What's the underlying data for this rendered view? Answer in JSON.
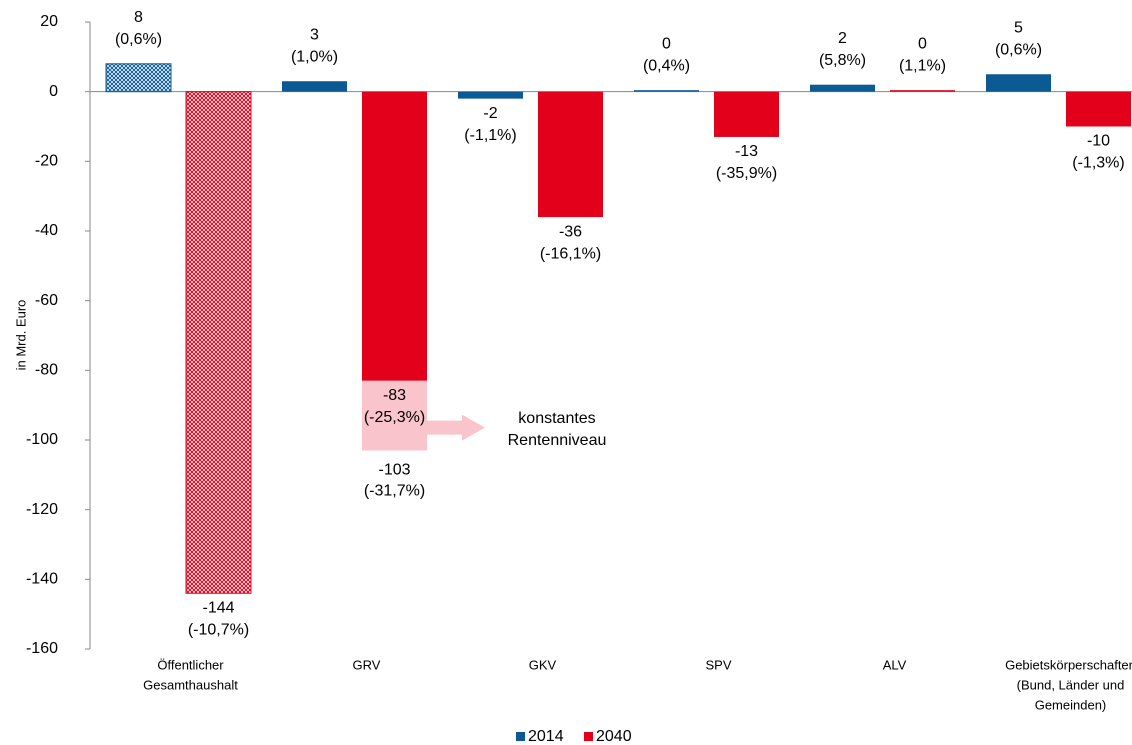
{
  "chart_data": {
    "type": "bar",
    "y_label": "in Mrd. Euro",
    "categories": [
      [
        "Öffentlicher",
        "Gesamthaushalt"
      ],
      [
        "GRV"
      ],
      [
        "GKV"
      ],
      [
        "SPV"
      ],
      [
        "ALV"
      ],
      [
        "Gebietskörperschaften",
        "(Bund, Länder und",
        "Gemeinden)"
      ]
    ],
    "series": [
      {
        "name": "2014",
        "color": "#0b5a94",
        "values": [
          8,
          3,
          -2,
          0,
          2,
          5
        ],
        "shares": [
          "(0,6%)",
          "(1,0%)",
          "(-1,1%)",
          "(0,4%)",
          "(5,8%)",
          "(0,6%)"
        ],
        "hatched": [
          true,
          false,
          false,
          false,
          false,
          false
        ]
      },
      {
        "name": "2040",
        "color": "#e2001a",
        "values": [
          -144,
          -83,
          -36,
          -13,
          0,
          -10
        ],
        "shares": [
          "(-10,7%)",
          "(-25,3%)",
          "(-16,1%)",
          "(-35,9%)",
          "(1,1%)",
          "(-1,3%)"
        ],
        "hatched": [
          true,
          false,
          false,
          false,
          false,
          false
        ],
        "scenario_values": [
          null,
          -103,
          null,
          null,
          null,
          null
        ],
        "scenario_shares": [
          null,
          "(-31,7%)",
          null,
          null,
          null,
          null
        ],
        "scenario_color": "#f9c4cb",
        "scenario_text": [
          "konstantes",
          "Rentenniveau"
        ]
      }
    ],
    "ylim": [
      -160,
      20
    ],
    "yticks": [
      -160,
      -140,
      -120,
      -100,
      -80,
      -60,
      -40,
      -20,
      0,
      20
    ],
    "legend": "bottom"
  }
}
